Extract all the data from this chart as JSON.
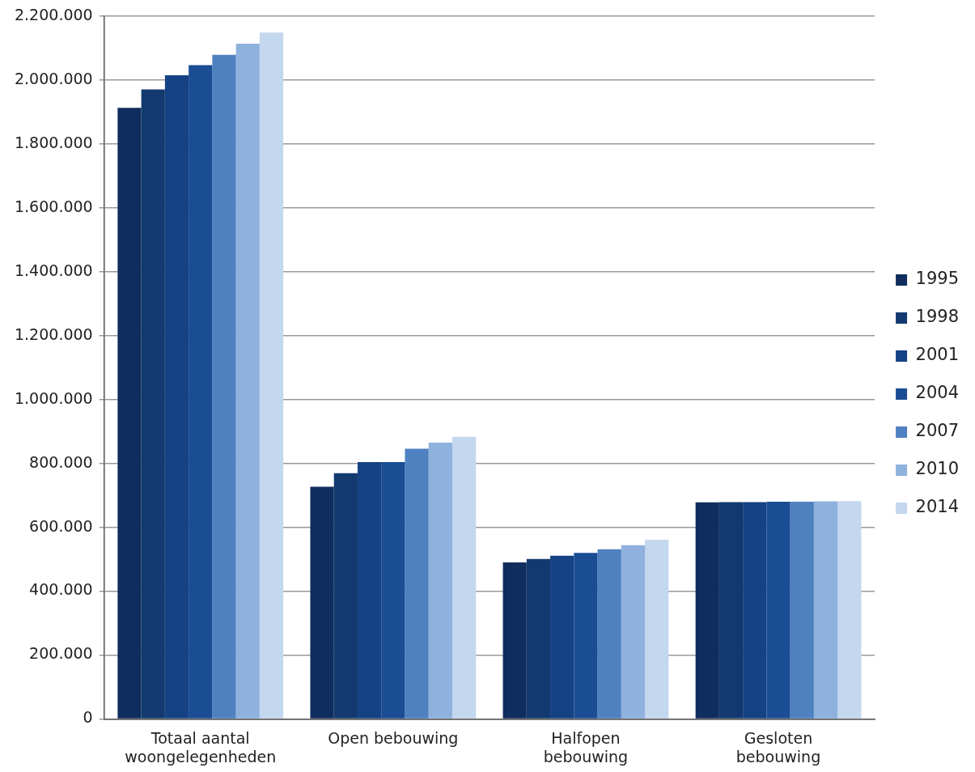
{
  "chart_data": {
    "type": "bar",
    "categories": [
      "Totaal aantal woongelegenheden",
      "Open bebouwing",
      "Halfopen bebouwing",
      "Gesloten bebouwing"
    ],
    "series": [
      {
        "name": "1995",
        "color": "#0f2d5e",
        "values": [
          1913000,
          727000,
          490000,
          678000
        ]
      },
      {
        "name": "1998",
        "color": "#133a70",
        "values": [
          1971000,
          769000,
          501000,
          679000
        ]
      },
      {
        "name": "2001",
        "color": "#154284",
        "values": [
          2015000,
          804000,
          511000,
          679000
        ]
      },
      {
        "name": "2004",
        "color": "#1a4d94",
        "values": [
          2047000,
          804000,
          520000,
          680000
        ]
      },
      {
        "name": "2007",
        "color": "#4f81c0",
        "values": [
          2079000,
          846000,
          531000,
          680000
        ]
      },
      {
        "name": "2010",
        "color": "#8fb1dd",
        "values": [
          2114000,
          865000,
          544000,
          681000
        ]
      },
      {
        "name": "2014",
        "color": "#c3d7ef",
        "values": [
          2149000,
          883000,
          561000,
          682000
        ]
      }
    ],
    "ylim": [
      0,
      2200000
    ],
    "yticks": [
      0,
      {
        "value": 200000,
        "label": "200.000"
      },
      {
        "value": 400000,
        "label": "400.000"
      },
      {
        "value": 600000,
        "label": "600.000"
      },
      {
        "value": 800000,
        "label": "800.000"
      },
      {
        "value": 1000000,
        "label": "1.000.000"
      },
      {
        "value": 1200000,
        "label": "1.200.000"
      },
      {
        "value": 1400000,
        "label": "1.400.000"
      },
      {
        "value": 1600000,
        "label": "1.600.000"
      },
      {
        "value": 1800000,
        "label": "1.800.000"
      },
      {
        "value": 2000000,
        "label": "2.000.000"
      },
      {
        "value": 2200000,
        "label": "2.200.000"
      }
    ],
    "grid": "y",
    "legend": "right"
  }
}
